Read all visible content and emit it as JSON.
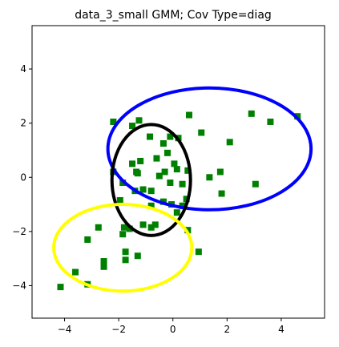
{
  "chart_data": {
    "type": "scatter",
    "title": "data_3_small GMM; Cov Type=diag",
    "xlabel": "",
    "ylabel": "",
    "xlim": [
      -5.2,
      5.6
    ],
    "ylim": [
      -5.2,
      5.6
    ],
    "xticks": [
      -4,
      -2,
      0,
      2,
      4
    ],
    "yticks": [
      -4,
      -2,
      0,
      2,
      4
    ],
    "xtick_labels": [
      "−4",
      "−2",
      "0",
      "2",
      "4"
    ],
    "ytick_labels": [
      "−4",
      "−2",
      "0",
      "2",
      "4"
    ],
    "grid": false,
    "marker_color": "#008000",
    "points": [
      [
        -4.15,
        -4.05
      ],
      [
        -3.6,
        -3.5
      ],
      [
        -3.15,
        -3.95
      ],
      [
        -2.55,
        -3.3
      ],
      [
        -2.55,
        -3.1
      ],
      [
        -1.75,
        -3.05
      ],
      [
        -1.75,
        -2.75
      ],
      [
        -1.3,
        -2.9
      ],
      [
        -3.15,
        -2.3
      ],
      [
        -2.75,
        -1.85
      ],
      [
        -1.85,
        -2.1
      ],
      [
        -1.6,
        -1.9
      ],
      [
        -1.8,
        -1.85
      ],
      [
        -1.1,
        -1.75
      ],
      [
        -0.8,
        -1.85
      ],
      [
        -0.65,
        -1.75
      ],
      [
        0.55,
        -1.95
      ],
      [
        0.95,
        -2.75
      ],
      [
        -1.95,
        -0.85
      ],
      [
        -1.4,
        -0.5
      ],
      [
        -1.1,
        -0.45
      ],
      [
        -0.8,
        -1.05
      ],
      [
        -0.35,
        -0.9
      ],
      [
        -0.05,
        -1.0
      ],
      [
        0.15,
        -1.3
      ],
      [
        0.35,
        -1.05
      ],
      [
        0.5,
        -0.8
      ],
      [
        -2.2,
        0.2
      ],
      [
        -1.85,
        -0.2
      ],
      [
        -1.5,
        0.5
      ],
      [
        -1.35,
        0.2
      ],
      [
        -1.3,
        0.15
      ],
      [
        -1.2,
        0.6
      ],
      [
        -0.8,
        -0.5
      ],
      [
        -0.6,
        0.7
      ],
      [
        -0.5,
        0.05
      ],
      [
        -0.3,
        0.2
      ],
      [
        -0.2,
        0.9
      ],
      [
        -0.1,
        -0.2
      ],
      [
        0.05,
        0.5
      ],
      [
        0.15,
        0.3
      ],
      [
        0.35,
        -0.25
      ],
      [
        0.55,
        0.25
      ],
      [
        -2.2,
        2.05
      ],
      [
        -1.5,
        1.9
      ],
      [
        -1.25,
        2.1
      ],
      [
        -0.85,
        1.5
      ],
      [
        -0.35,
        1.25
      ],
      [
        -0.1,
        1.5
      ],
      [
        0.2,
        1.45
      ],
      [
        0.6,
        2.3
      ],
      [
        1.05,
        1.65
      ],
      [
        1.35,
        0.0
      ],
      [
        1.75,
        0.2
      ],
      [
        1.8,
        -0.6
      ],
      [
        2.1,
        1.3
      ],
      [
        2.9,
        2.35
      ],
      [
        3.05,
        -0.25
      ],
      [
        3.6,
        2.05
      ],
      [
        4.6,
        2.25
      ]
    ],
    "ellipses": [
      {
        "cx": 1.35,
        "cy": 1.05,
        "rx": 3.75,
        "ry": 2.25,
        "color": "#0000ff"
      },
      {
        "cx": -0.8,
        "cy": -0.1,
        "rx": 1.45,
        "ry": 2.05,
        "color": "#000000"
      },
      {
        "cx": -1.85,
        "cy": -2.6,
        "rx": 2.55,
        "ry": 1.6,
        "color": "#ffff00"
      }
    ]
  }
}
